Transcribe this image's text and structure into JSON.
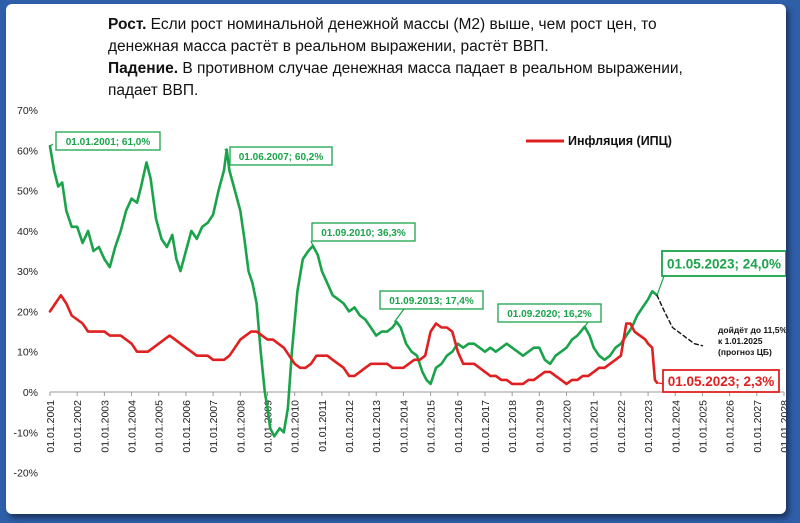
{
  "header": {
    "line1_bold": "Рост.",
    "line1_rest": " Если рост номинальной денежной массы (М2) выше, чем рост цен,  то",
    "line2": "денежная масса растёт в реальном выражении, растёт ВВП.",
    "line3_bold": "Падение.",
    "line3_rest": " В противном случае денежная масса падает в реальном выражении,",
    "line4": "падает ВВП."
  },
  "chart_data": {
    "type": "line",
    "title": "",
    "xlabel": "",
    "ylabel": "",
    "xlim": [
      2001,
      2028
    ],
    "ylim": [
      -20,
      70
    ],
    "grid": false,
    "legend_position": "top-right",
    "y_tick_labels": [
      "70%",
      "60%",
      "50%",
      "40%",
      "30%",
      "20%",
      "10%",
      "0%",
      "-10%",
      "-20%"
    ],
    "y_tick_values": [
      70,
      60,
      50,
      40,
      30,
      20,
      10,
      0,
      -10,
      -20
    ],
    "x_tick_labels": [
      "01.01.2001",
      "01.01.2002",
      "01.01.2003",
      "01.01.2004",
      "01.01.2005",
      "01.01.2006",
      "01.01.2007",
      "01.01.2008",
      "01.01.2009",
      "01.01.2010",
      "01.01.2011",
      "01.01.2012",
      "01.01.2013",
      "01.01.2014",
      "01.01.2015",
      "01.01.2016",
      "01.01.2017",
      "01.01.2018",
      "01.01.2019",
      "01.01.2020",
      "01.01.2021",
      "01.01.2022",
      "01.01.2023",
      "01.01.2024",
      "01.01.2025",
      "01.01.2026",
      "01.01.2027",
      "01.01.2028"
    ],
    "series": [
      {
        "name": "",
        "color": "#1aa34a",
        "points": [
          [
            2001.0,
            61
          ],
          [
            2001.15,
            55
          ],
          [
            2001.3,
            51
          ],
          [
            2001.45,
            52
          ],
          [
            2001.6,
            45
          ],
          [
            2001.8,
            41
          ],
          [
            2002.0,
            41
          ],
          [
            2002.2,
            37
          ],
          [
            2002.4,
            40
          ],
          [
            2002.6,
            35
          ],
          [
            2002.8,
            36
          ],
          [
            2003.0,
            33
          ],
          [
            2003.2,
            31
          ],
          [
            2003.4,
            36
          ],
          [
            2003.6,
            40
          ],
          [
            2003.8,
            45
          ],
          [
            2004.0,
            48
          ],
          [
            2004.2,
            47
          ],
          [
            2004.35,
            51
          ],
          [
            2004.55,
            57
          ],
          [
            2004.7,
            53
          ],
          [
            2004.9,
            43
          ],
          [
            2005.1,
            38
          ],
          [
            2005.3,
            36
          ],
          [
            2005.5,
            39
          ],
          [
            2005.65,
            33
          ],
          [
            2005.8,
            30
          ],
          [
            2006.0,
            35
          ],
          [
            2006.2,
            40
          ],
          [
            2006.4,
            38
          ],
          [
            2006.6,
            41
          ],
          [
            2006.8,
            42
          ],
          [
            2007.0,
            44
          ],
          [
            2007.2,
            50
          ],
          [
            2007.4,
            55
          ],
          [
            2007.5,
            60.2
          ],
          [
            2007.6,
            55
          ],
          [
            2007.8,
            50
          ],
          [
            2008.0,
            45
          ],
          [
            2008.15,
            38
          ],
          [
            2008.3,
            30
          ],
          [
            2008.45,
            27
          ],
          [
            2008.6,
            22
          ],
          [
            2008.75,
            10
          ],
          [
            2008.9,
            0
          ],
          [
            2009.0,
            -4
          ],
          [
            2009.1,
            -9
          ],
          [
            2009.25,
            -11
          ],
          [
            2009.45,
            -9
          ],
          [
            2009.6,
            -10
          ],
          [
            2009.75,
            -4
          ],
          [
            2009.9,
            10
          ],
          [
            2010.1,
            25
          ],
          [
            2010.3,
            33
          ],
          [
            2010.5,
            35
          ],
          [
            2010.67,
            36.3
          ],
          [
            2010.85,
            34
          ],
          [
            2011.0,
            30
          ],
          [
            2011.2,
            27
          ],
          [
            2011.4,
            24
          ],
          [
            2011.6,
            23
          ],
          [
            2011.8,
            22
          ],
          [
            2012.0,
            20
          ],
          [
            2012.2,
            21
          ],
          [
            2012.4,
            19
          ],
          [
            2012.6,
            18
          ],
          [
            2012.8,
            16
          ],
          [
            2013.0,
            14
          ],
          [
            2013.2,
            15
          ],
          [
            2013.4,
            15
          ],
          [
            2013.6,
            16
          ],
          [
            2013.75,
            17.4
          ],
          [
            2013.9,
            16
          ],
          [
            2014.1,
            12
          ],
          [
            2014.3,
            10
          ],
          [
            2014.5,
            9
          ],
          [
            2014.7,
            5
          ],
          [
            2014.85,
            3
          ],
          [
            2015.0,
            2
          ],
          [
            2015.2,
            6
          ],
          [
            2015.4,
            7
          ],
          [
            2015.6,
            9
          ],
          [
            2015.8,
            10
          ],
          [
            2016.0,
            12
          ],
          [
            2016.2,
            11
          ],
          [
            2016.4,
            12
          ],
          [
            2016.6,
            12
          ],
          [
            2016.8,
            11
          ],
          [
            2017.0,
            10
          ],
          [
            2017.2,
            11
          ],
          [
            2017.4,
            10
          ],
          [
            2017.6,
            11
          ],
          [
            2017.8,
            12
          ],
          [
            2018.0,
            11
          ],
          [
            2018.2,
            10
          ],
          [
            2018.4,
            9
          ],
          [
            2018.6,
            10
          ],
          [
            2018.8,
            11
          ],
          [
            2019.0,
            11
          ],
          [
            2019.2,
            8
          ],
          [
            2019.4,
            7
          ],
          [
            2019.6,
            9
          ],
          [
            2019.8,
            10
          ],
          [
            2020.0,
            11
          ],
          [
            2020.2,
            13
          ],
          [
            2020.4,
            14
          ],
          [
            2020.67,
            16.2
          ],
          [
            2020.85,
            14
          ],
          [
            2021.0,
            11
          ],
          [
            2021.2,
            9
          ],
          [
            2021.4,
            8
          ],
          [
            2021.6,
            9
          ],
          [
            2021.8,
            11
          ],
          [
            2022.0,
            12
          ],
          [
            2022.2,
            14
          ],
          [
            2022.4,
            16
          ],
          [
            2022.6,
            19
          ],
          [
            2022.8,
            21
          ],
          [
            2023.0,
            23
          ],
          [
            2023.15,
            25
          ],
          [
            2023.33,
            24
          ]
        ]
      },
      {
        "name": "Инфляция (ИПЦ)",
        "color": "#e02020",
        "points": [
          [
            2001.0,
            20
          ],
          [
            2001.2,
            22
          ],
          [
            2001.4,
            24
          ],
          [
            2001.6,
            22
          ],
          [
            2001.8,
            19
          ],
          [
            2002.0,
            18
          ],
          [
            2002.2,
            17
          ],
          [
            2002.4,
            15
          ],
          [
            2002.6,
            15
          ],
          [
            2002.8,
            15
          ],
          [
            2003.0,
            15
          ],
          [
            2003.2,
            14
          ],
          [
            2003.4,
            14
          ],
          [
            2003.6,
            14
          ],
          [
            2003.8,
            13
          ],
          [
            2004.0,
            12
          ],
          [
            2004.2,
            10
          ],
          [
            2004.4,
            10
          ],
          [
            2004.6,
            10
          ],
          [
            2004.8,
            11
          ],
          [
            2005.0,
            12
          ],
          [
            2005.2,
            13
          ],
          [
            2005.4,
            14
          ],
          [
            2005.6,
            13
          ],
          [
            2005.8,
            12
          ],
          [
            2006.0,
            11
          ],
          [
            2006.2,
            10
          ],
          [
            2006.4,
            9
          ],
          [
            2006.6,
            9
          ],
          [
            2006.8,
            9
          ],
          [
            2007.0,
            8
          ],
          [
            2007.2,
            8
          ],
          [
            2007.4,
            8
          ],
          [
            2007.6,
            9
          ],
          [
            2007.8,
            11
          ],
          [
            2008.0,
            13
          ],
          [
            2008.2,
            14
          ],
          [
            2008.4,
            15
          ],
          [
            2008.6,
            15
          ],
          [
            2008.8,
            14
          ],
          [
            2009.0,
            13
          ],
          [
            2009.2,
            13
          ],
          [
            2009.4,
            12
          ],
          [
            2009.6,
            11
          ],
          [
            2009.8,
            9
          ],
          [
            2010.0,
            7
          ],
          [
            2010.2,
            6
          ],
          [
            2010.4,
            6
          ],
          [
            2010.6,
            7
          ],
          [
            2010.8,
            9
          ],
          [
            2011.0,
            9
          ],
          [
            2011.2,
            9
          ],
          [
            2011.4,
            8
          ],
          [
            2011.6,
            7
          ],
          [
            2011.8,
            6
          ],
          [
            2012.0,
            4
          ],
          [
            2012.2,
            4
          ],
          [
            2012.4,
            5
          ],
          [
            2012.6,
            6
          ],
          [
            2012.8,
            7
          ],
          [
            2013.0,
            7
          ],
          [
            2013.2,
            7
          ],
          [
            2013.4,
            7
          ],
          [
            2013.6,
            6
          ],
          [
            2013.8,
            6
          ],
          [
            2014.0,
            6
          ],
          [
            2014.2,
            7
          ],
          [
            2014.4,
            8
          ],
          [
            2014.6,
            8
          ],
          [
            2014.8,
            9
          ],
          [
            2015.0,
            15
          ],
          [
            2015.2,
            17
          ],
          [
            2015.4,
            16
          ],
          [
            2015.6,
            16
          ],
          [
            2015.8,
            15
          ],
          [
            2016.0,
            10
          ],
          [
            2016.2,
            7
          ],
          [
            2016.4,
            7
          ],
          [
            2016.6,
            7
          ],
          [
            2016.8,
            6
          ],
          [
            2017.0,
            5
          ],
          [
            2017.2,
            4
          ],
          [
            2017.4,
            4
          ],
          [
            2017.6,
            3
          ],
          [
            2017.8,
            3
          ],
          [
            2018.0,
            2
          ],
          [
            2018.2,
            2
          ],
          [
            2018.4,
            2
          ],
          [
            2018.6,
            3
          ],
          [
            2018.8,
            3
          ],
          [
            2019.0,
            4
          ],
          [
            2019.2,
            5
          ],
          [
            2019.4,
            5
          ],
          [
            2019.6,
            4
          ],
          [
            2019.8,
            3
          ],
          [
            2020.0,
            2
          ],
          [
            2020.2,
            3
          ],
          [
            2020.4,
            3
          ],
          [
            2020.6,
            4
          ],
          [
            2020.8,
            4
          ],
          [
            2021.0,
            5
          ],
          [
            2021.2,
            6
          ],
          [
            2021.4,
            6
          ],
          [
            2021.6,
            7
          ],
          [
            2021.8,
            8
          ],
          [
            2022.0,
            9
          ],
          [
            2022.2,
            17
          ],
          [
            2022.35,
            17
          ],
          [
            2022.5,
            15
          ],
          [
            2022.7,
            14
          ],
          [
            2022.9,
            13
          ],
          [
            2023.0,
            12
          ],
          [
            2023.15,
            11
          ],
          [
            2023.25,
            3
          ],
          [
            2023.33,
            2.3
          ]
        ]
      },
      {
        "name": "",
        "style": "dashed",
        "color": "#111111",
        "points": [
          [
            2023.33,
            24
          ],
          [
            2023.6,
            20
          ],
          [
            2023.9,
            16
          ],
          [
            2024.3,
            14
          ],
          [
            2024.7,
            12
          ],
          [
            2025.0,
            11.5
          ]
        ]
      }
    ],
    "annotations": [
      {
        "text": "01.01.2001; 61,0%",
        "x": 2001.0,
        "y": 61,
        "color": "#1aa34a",
        "size": "small"
      },
      {
        "text": "01.06.2007; 60,2%",
        "x": 2007.42,
        "y": 60.2,
        "color": "#1aa34a",
        "size": "small"
      },
      {
        "text": "01.09.2010; 36,3%",
        "x": 2010.67,
        "y": 36.3,
        "color": "#1aa34a",
        "size": "small"
      },
      {
        "text": "01.09.2013; 17,4%",
        "x": 2013.67,
        "y": 17.4,
        "color": "#1aa34a",
        "size": "small"
      },
      {
        "text": "01.09.2020; 16,2%",
        "x": 2020.67,
        "y": 16.2,
        "color": "#1aa34a",
        "size": "small"
      },
      {
        "text": "01.05.2023; 24,0%",
        "x": 2023.33,
        "y": 24.0,
        "color": "#1aa34a",
        "size": "large"
      },
      {
        "text": "01.05.2023; 2,3%",
        "x": 2023.33,
        "y": 2.3,
        "color": "#e02020",
        "size": "large"
      }
    ],
    "note_lines": [
      "дойдёт до 11,5%",
      "к 1.01.2025",
      "(прогноз ЦБ)"
    ]
  }
}
